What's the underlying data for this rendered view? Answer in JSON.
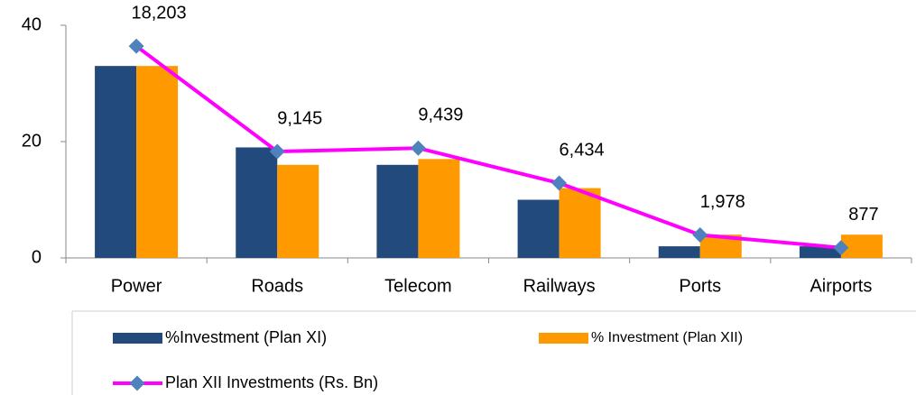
{
  "chart_data": {
    "type": "bar",
    "categories": [
      "Power",
      "Roads",
      "Telecom",
      "Railways",
      "Ports",
      "Airports"
    ],
    "series": [
      {
        "name": "%Investment (Plan XI)",
        "type": "bar",
        "color": "#234a7c",
        "values": [
          33,
          19,
          16,
          10,
          2,
          2
        ]
      },
      {
        "name": "% Investment (Plan XII)",
        "type": "bar",
        "color": "#ff9900",
        "values": [
          33,
          16,
          17,
          12,
          4,
          4
        ]
      },
      {
        "name": "Plan XII Investments (Rs. Bn)",
        "type": "line",
        "axis": "y2",
        "color": "#ff00ff",
        "marker_color": "#4f81bd",
        "values": [
          18203,
          9145,
          9439,
          6434,
          1978,
          877
        ],
        "value_labels": [
          "18,203",
          "9,145",
          "9,439",
          "6,434",
          "1,978",
          "877"
        ]
      }
    ],
    "ylim": [
      0,
      40
    ],
    "yticks": [
      0,
      20,
      40
    ],
    "y2lim": [
      0,
      20000
    ],
    "grid": false,
    "legend": "bottom"
  }
}
